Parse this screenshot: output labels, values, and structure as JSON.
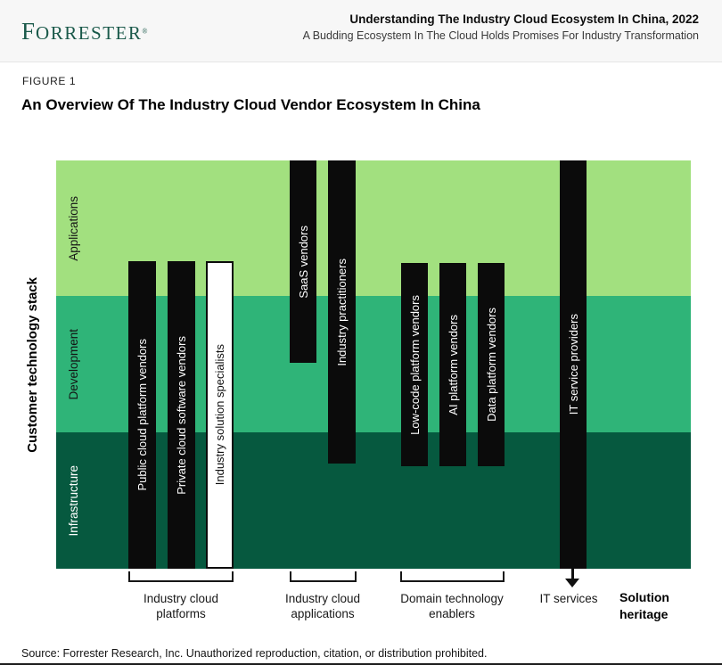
{
  "header": {
    "logo_initial": "F",
    "logo_rest": "ORRESTER",
    "registered_mark": "®",
    "brand_green": "#1a594a",
    "title": "Understanding The Industry Cloud Ecosystem In China, 2022",
    "subtitle": "A Budding Ecosystem In The Cloud Holds Promises For Industry Transformation"
  },
  "figure": {
    "label": "FIGURE 1",
    "title": "An Overview Of The Industry Cloud Vendor Ecosystem In China"
  },
  "diagram": {
    "stack_axis_label": "Customer technology stack",
    "layers": [
      {
        "label": "Applications",
        "color": "#a2e07f"
      },
      {
        "label": "Development",
        "color": "#2fb478"
      },
      {
        "label": "Infrastructure",
        "color": "#06593f"
      }
    ],
    "bars": [
      {
        "label": "Public cloud platform vendors",
        "style": "black",
        "group": "Industry cloud platforms",
        "spans": [
          "Applications",
          "Development",
          "Infrastructure"
        ]
      },
      {
        "label": "Private cloud software vendors",
        "style": "black",
        "group": "Industry cloud platforms",
        "spans": [
          "Applications",
          "Development",
          "Infrastructure"
        ]
      },
      {
        "label": "Industry solution specialists",
        "style": "white-outline",
        "group": "Industry cloud platforms",
        "spans": [
          "Applications",
          "Development",
          "Infrastructure"
        ]
      },
      {
        "label": "SaaS vendors",
        "style": "black",
        "group": "Industry cloud applications",
        "spans": [
          "Applications",
          "Development"
        ]
      },
      {
        "label": "Industry practitioners",
        "style": "black",
        "group": "Industry cloud applications",
        "spans": [
          "Applications",
          "Development",
          "Infrastructure"
        ]
      },
      {
        "label": "Low-code platform vendors",
        "style": "black",
        "group": "Domain technology enablers",
        "spans": [
          "Applications",
          "Development",
          "Infrastructure"
        ]
      },
      {
        "label": "AI platform vendors",
        "style": "black",
        "group": "Domain technology enablers",
        "spans": [
          "Applications",
          "Development",
          "Infrastructure"
        ]
      },
      {
        "label": "Data platform vendors",
        "style": "black",
        "group": "Domain technology enablers",
        "spans": [
          "Applications",
          "Development",
          "Infrastructure"
        ]
      },
      {
        "label": "IT service providers",
        "style": "black",
        "group": "IT services",
        "spans": [
          "Applications",
          "Development",
          "Infrastructure"
        ]
      }
    ],
    "groups": [
      {
        "label": "Industry cloud platforms"
      },
      {
        "label": "Industry cloud applications"
      },
      {
        "label": "Domain technology enablers"
      },
      {
        "label": "IT services"
      }
    ],
    "heritage_label": "Solution heritage"
  },
  "source": "Source: Forrester Research, Inc. Unauthorized reproduction, citation, or distribution prohibited."
}
